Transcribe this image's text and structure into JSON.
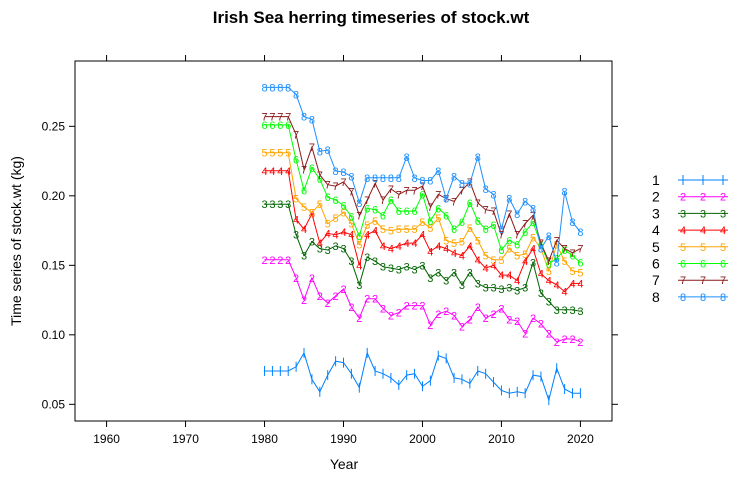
{
  "chart_data": {
    "type": "line",
    "title": "Irish Sea herring timeseries of stock.wt",
    "xlabel": "Year",
    "ylabel": "Time series of stock.wt (kg)",
    "xlim": [
      1956,
      2024
    ],
    "ylim": [
      0.038,
      0.297
    ],
    "x_ticks": [
      "1960",
      "1970",
      "1980",
      "1990",
      "2000",
      "2010",
      "2020"
    ],
    "y_ticks": [
      "0.05",
      "0.10",
      "0.15",
      "0.20",
      "0.25"
    ],
    "legend_position": "right",
    "x": [
      1980,
      1981,
      1982,
      1983,
      1984,
      1985,
      1986,
      1987,
      1988,
      1989,
      1990,
      1991,
      1992,
      1993,
      1994,
      1995,
      1996,
      1997,
      1998,
      1999,
      2000,
      2001,
      2002,
      2003,
      2004,
      2005,
      2006,
      2007,
      2008,
      2009,
      2010,
      2011,
      2012,
      2013,
      2014,
      2015,
      2016,
      2017,
      2018,
      2019,
      2020
    ],
    "series": [
      {
        "name": "1",
        "color": "#0080ff",
        "marker": "|",
        "values": [
          0.074,
          0.074,
          0.074,
          0.074,
          0.077,
          0.087,
          0.068,
          0.059,
          0.071,
          0.081,
          0.08,
          0.072,
          0.062,
          0.087,
          0.074,
          0.072,
          0.069,
          0.064,
          0.071,
          0.072,
          0.063,
          0.067,
          0.085,
          0.083,
          0.069,
          0.068,
          0.065,
          0.074,
          0.072,
          0.066,
          0.06,
          0.058,
          0.059,
          0.058,
          0.071,
          0.07,
          0.053,
          0.076,
          0.061,
          0.058,
          0.058
        ]
      },
      {
        "name": "2",
        "color": "#ff00ff",
        "marker": "2",
        "values": [
          0.154,
          0.154,
          0.154,
          0.154,
          0.141,
          0.125,
          0.141,
          0.128,
          0.123,
          0.128,
          0.133,
          0.12,
          0.112,
          0.126,
          0.126,
          0.119,
          0.114,
          0.116,
          0.121,
          0.121,
          0.121,
          0.107,
          0.115,
          0.117,
          0.114,
          0.106,
          0.111,
          0.12,
          0.112,
          0.115,
          0.119,
          0.111,
          0.11,
          0.101,
          0.112,
          0.108,
          0.101,
          0.095,
          0.097,
          0.097,
          0.095
        ]
      },
      {
        "name": "3",
        "color": "#006400",
        "marker": "3",
        "values": [
          0.194,
          0.194,
          0.194,
          0.194,
          0.172,
          0.157,
          0.167,
          0.162,
          0.161,
          0.164,
          0.162,
          0.153,
          0.136,
          0.156,
          0.153,
          0.149,
          0.148,
          0.147,
          0.149,
          0.147,
          0.15,
          0.141,
          0.145,
          0.139,
          0.145,
          0.136,
          0.145,
          0.137,
          0.134,
          0.134,
          0.133,
          0.134,
          0.132,
          0.134,
          0.152,
          0.13,
          0.124,
          0.118,
          0.118,
          0.118,
          0.117
        ]
      },
      {
        "name": "4",
        "color": "#ff0000",
        "marker": "4",
        "values": [
          0.218,
          0.218,
          0.218,
          0.218,
          0.183,
          0.176,
          0.187,
          0.166,
          0.173,
          0.172,
          0.174,
          0.172,
          0.15,
          0.172,
          0.175,
          0.164,
          0.162,
          0.164,
          0.166,
          0.166,
          0.172,
          0.16,
          0.164,
          0.162,
          0.159,
          0.157,
          0.164,
          0.154,
          0.148,
          0.15,
          0.143,
          0.143,
          0.139,
          0.153,
          0.162,
          0.144,
          0.139,
          0.136,
          0.131,
          0.137,
          0.137
        ]
      },
      {
        "name": "5",
        "color": "#ffa500",
        "marker": "5",
        "values": [
          0.231,
          0.231,
          0.231,
          0.231,
          0.198,
          0.192,
          0.188,
          0.194,
          0.18,
          0.184,
          0.188,
          0.18,
          0.165,
          0.179,
          0.182,
          0.176,
          0.175,
          0.176,
          0.176,
          0.176,
          0.181,
          0.177,
          0.184,
          0.168,
          0.166,
          0.167,
          0.177,
          0.168,
          0.157,
          0.154,
          0.154,
          0.162,
          0.157,
          0.158,
          0.17,
          0.162,
          0.146,
          0.165,
          0.153,
          0.146,
          0.145
        ]
      },
      {
        "name": "6",
        "color": "#00ff00",
        "marker": "6",
        "values": [
          0.251,
          0.251,
          0.251,
          0.251,
          0.226,
          0.204,
          0.22,
          0.212,
          0.199,
          0.197,
          0.193,
          0.185,
          0.171,
          0.191,
          0.19,
          0.186,
          0.197,
          0.189,
          0.189,
          0.189,
          0.201,
          0.182,
          0.191,
          0.186,
          0.176,
          0.181,
          0.195,
          0.182,
          0.176,
          0.179,
          0.161,
          0.168,
          0.165,
          0.174,
          0.181,
          0.165,
          0.151,
          0.155,
          0.161,
          0.157,
          0.152
        ]
      },
      {
        "name": "7",
        "color": "#8b1a1a",
        "marker": "7",
        "values": [
          0.257,
          0.257,
          0.257,
          0.257,
          0.244,
          0.219,
          0.235,
          0.215,
          0.208,
          0.207,
          0.21,
          0.203,
          0.186,
          0.197,
          0.209,
          0.197,
          0.205,
          0.201,
          0.204,
          0.204,
          0.207,
          0.192,
          0.201,
          0.198,
          0.196,
          0.204,
          0.21,
          0.195,
          0.19,
          0.189,
          0.172,
          0.187,
          0.172,
          0.18,
          0.186,
          0.166,
          0.153,
          0.168,
          0.162,
          0.159,
          0.162
        ]
      },
      {
        "name": "8",
        "color": "#1e90ff",
        "marker": "8",
        "values": [
          0.278,
          0.278,
          0.278,
          0.278,
          0.273,
          0.257,
          0.255,
          0.232,
          0.233,
          0.218,
          0.217,
          0.214,
          0.195,
          0.213,
          0.213,
          0.213,
          0.213,
          0.213,
          0.228,
          0.213,
          0.211,
          0.211,
          0.218,
          0.198,
          0.214,
          0.209,
          0.209,
          0.228,
          0.205,
          0.201,
          0.176,
          0.198,
          0.187,
          0.196,
          0.191,
          0.162,
          0.171,
          0.152,
          0.203,
          0.181,
          0.174
        ]
      }
    ]
  }
}
